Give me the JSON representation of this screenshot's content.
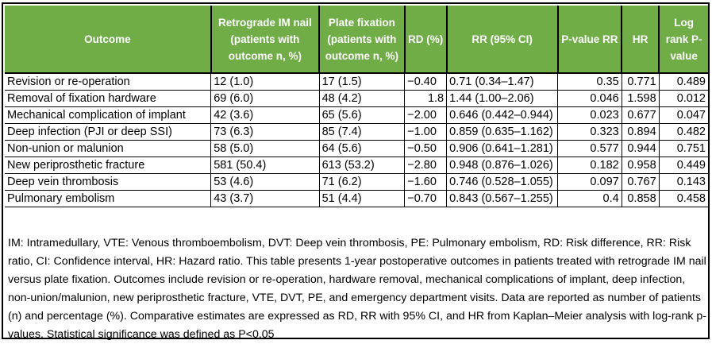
{
  "headers": [
    "Outcome",
    "Retrograde IM nail (patients with outcome n, %)",
    "Plate fixation (patients with outcome n, %)",
    "RD (%)",
    "RR (95% CI)",
    "P-value RR",
    "HR",
    "Log rank P-value"
  ],
  "rows": [
    [
      "Revision or re-operation",
      "12 (1.0)",
      "17 (1.5)",
      "−0.40",
      "0.71 (0.34–1.47)",
      "0.35",
      "0.771",
      "0.489"
    ],
    [
      "Removal of fixation hardware",
      "69 (6.0)",
      "48 (4.2)",
      "1.8",
      "1.44 (1.00–2.06)",
      "0.046",
      "1.598",
      "0.012"
    ],
    [
      "Mechanical complication of implant",
      "42 (3.6)",
      "65 (5.6)",
      "−2.00",
      "0.646 (0.442–0.944)",
      "0.023",
      "0.677",
      "0.047"
    ],
    [
      "Deep infection (PJI or deep SSI)",
      "73 (6.3)",
      "85 (7.4)",
      "−1.00",
      "0.859 (0.635–1.162)",
      "0.323",
      "0.894",
      "0.482"
    ],
    [
      "Non-union or malunion",
      "58 (5.0)",
      "64 (5.6)",
      "−0.50",
      "0.906 (0.641–1.281)",
      "0.577",
      "0.944",
      "0.751"
    ],
    [
      "New periprosthetic fracture",
      "581 (50.4)",
      "613 (53.2)",
      "−2.80",
      "0.948 (0.876–1.026)",
      "0.182",
      "0.958",
      "0.449"
    ],
    [
      "Deep vein thrombosis",
      "53 (4.6)",
      "71 (6.2)",
      "−1.60",
      "0.746 (0.528–1.055)",
      "0.097",
      "0.767",
      "0.143"
    ],
    [
      "Pulmonary embolism",
      "43 (3.7)",
      "51 (4.4)",
      "−0.70",
      "0.843 (0.567–1.255)",
      "0.4",
      "0.858",
      "0.458"
    ]
  ],
  "footnote": "IM: Intramedullary, VTE: Venous thromboembolism, DVT: Deep vein thrombosis, PE: Pulmonary embolism, RD: Risk difference, RR: Risk ratio, CI: Confidence interval, HR: Hazard ratio. This table presents 1-year postoperative outcomes in patients treated with retrograde IM nail versus plate fixation. Outcomes include revision or re-operation, hardware removal, mechanical complications of implant, deep infection, non-union/malunion, new periprosthetic fracture, VTE, DVT, PE, and emergency department visits. Data are reported as number of patients (n) and percentage (%). Comparative estimates are expressed as RD, RR with 95% CI, and HR from Kaplan–Meier analysis with log-rank p-values. Statistical significance was defined as P<0.05",
  "header_color": "#70ad47"
}
